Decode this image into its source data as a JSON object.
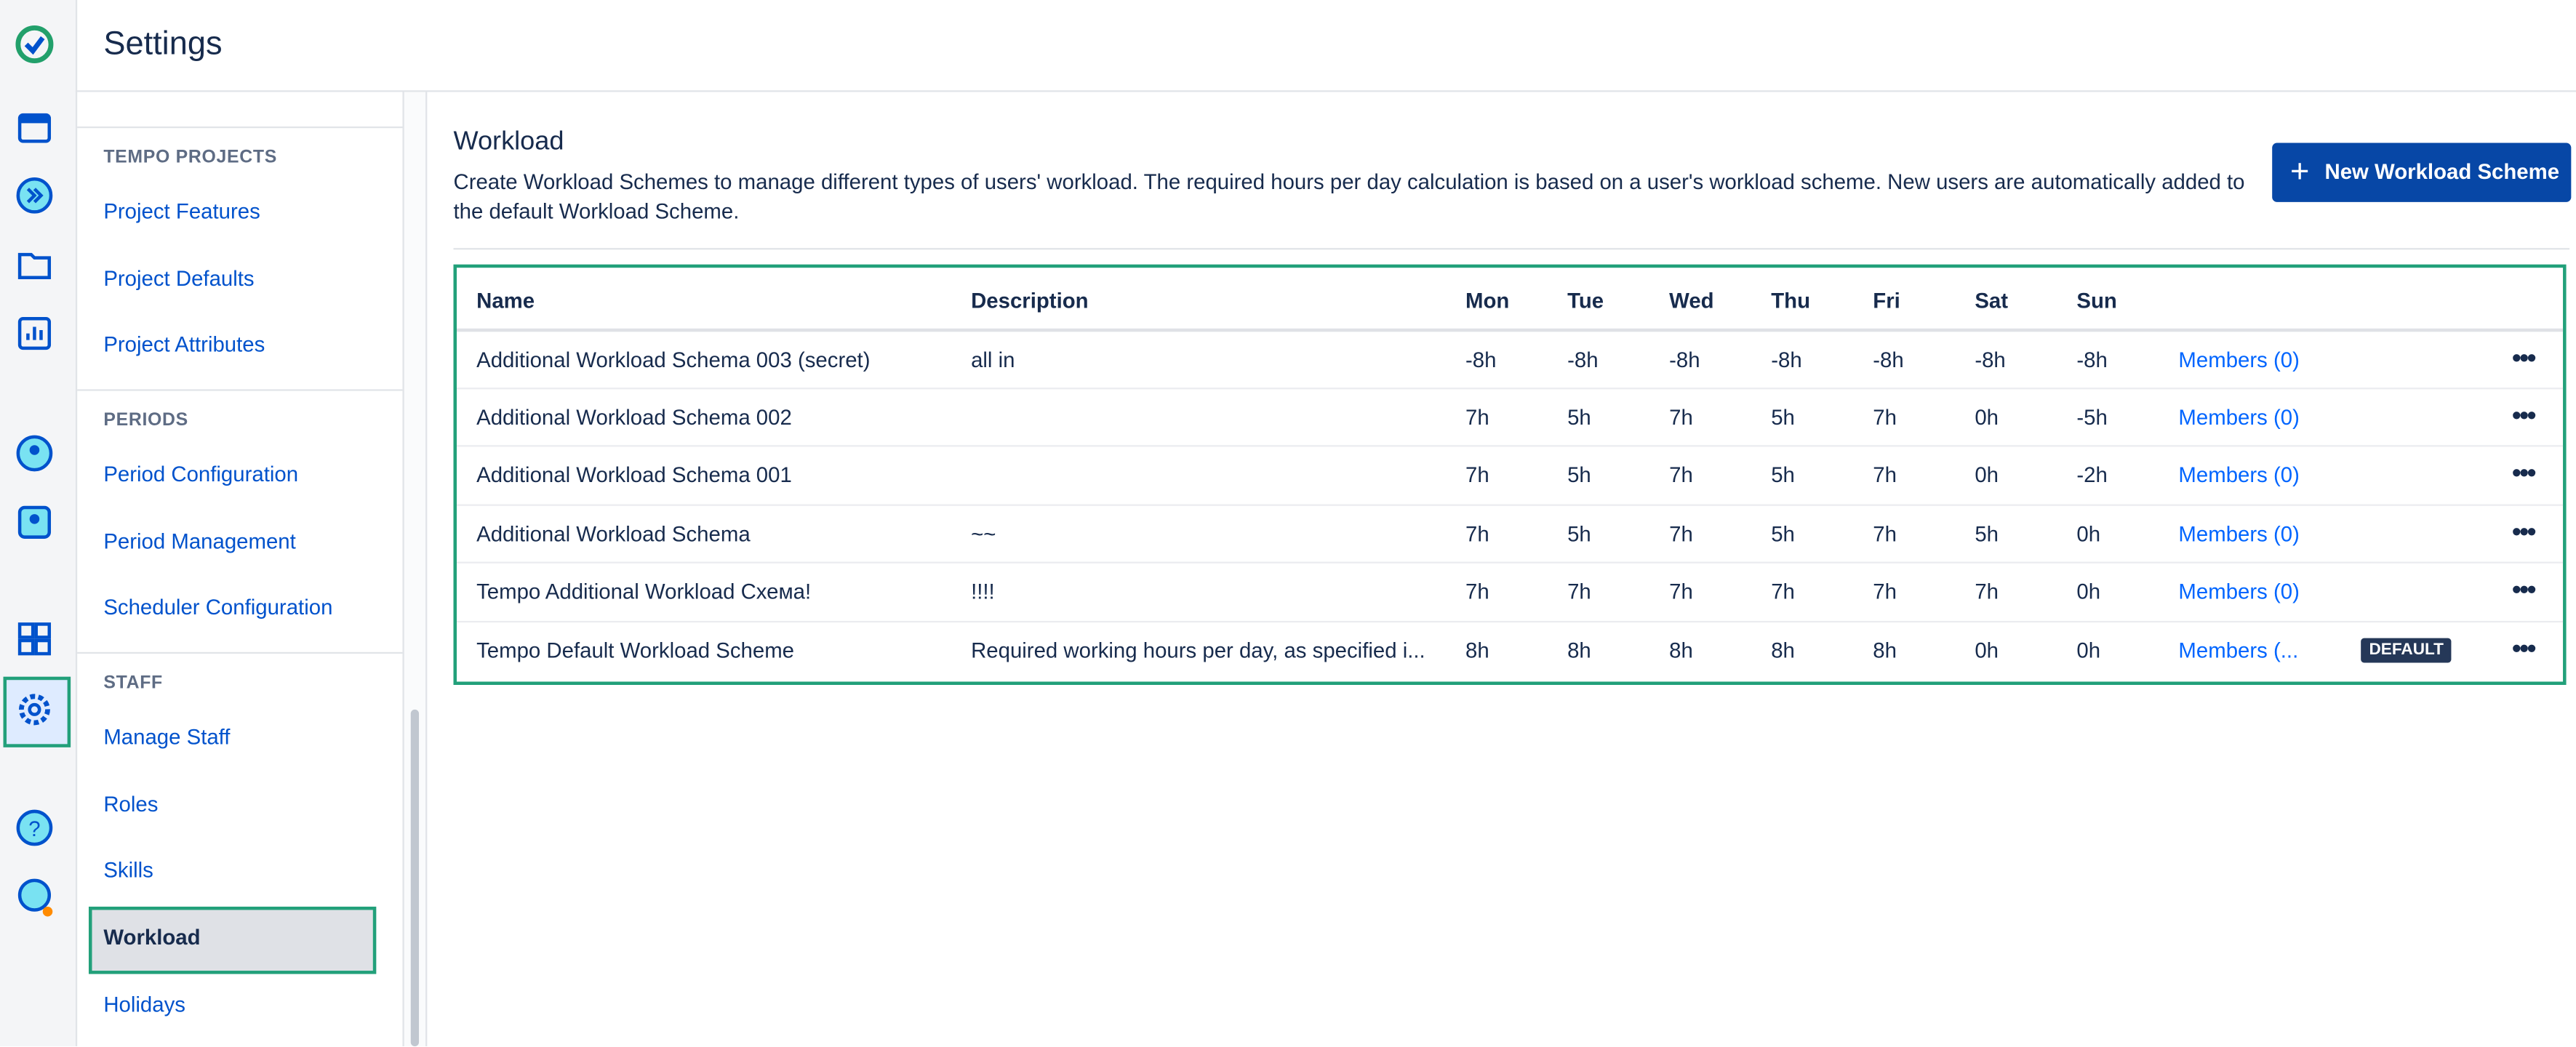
{
  "header": {
    "title": "Settings"
  },
  "sidebar": {
    "sections": [
      {
        "title": "TEMPO PROJECTS",
        "items": [
          "Project Features",
          "Project Defaults",
          "Project Attributes"
        ]
      },
      {
        "title": "PERIODS",
        "items": [
          "Period Configuration",
          "Period Management",
          "Scheduler Configuration"
        ]
      },
      {
        "title": "STAFF",
        "items": [
          "Manage Staff",
          "Roles",
          "Skills",
          "Workload",
          "Holidays"
        ]
      }
    ],
    "selected": "Workload"
  },
  "content": {
    "title": "Workload",
    "description": "Create Workload Schemes to manage different types of users' workload. The required hours per day calculation is based on a user's workload scheme. New users are automatically added to the default Workload Scheme.",
    "button": "New Workload Scheme"
  },
  "table": {
    "columns": [
      "Name",
      "Description",
      "Mon",
      "Tue",
      "Wed",
      "Thu",
      "Fri",
      "Sat",
      "Sun"
    ],
    "rows": [
      {
        "name": "Additional Workload Schema 003 (secret)",
        "description": "all in",
        "hours": [
          "-8h",
          "-8h",
          "-8h",
          "-8h",
          "-8h",
          "-8h",
          "-8h"
        ],
        "members": "Members (0)"
      },
      {
        "name": "Additional Workload Schema 002",
        "description": "",
        "hours": [
          "7h",
          "5h",
          "7h",
          "5h",
          "7h",
          "0h",
          "-5h"
        ],
        "members": "Members (0)"
      },
      {
        "name": "Additional Workload Schema 001",
        "description": "",
        "hours": [
          "7h",
          "5h",
          "7h",
          "5h",
          "7h",
          "0h",
          "-2h"
        ],
        "members": "Members (0)"
      },
      {
        "name": "Additional Workload Schema",
        "description": "~~",
        "hours": [
          "7h",
          "5h",
          "7h",
          "5h",
          "7h",
          "5h",
          "0h"
        ],
        "members": "Members (0)"
      },
      {
        "name": "Tempo Additional Workload Схема!",
        "description": "!!!!",
        "hours": [
          "7h",
          "7h",
          "7h",
          "7h",
          "7h",
          "7h",
          "0h"
        ],
        "members": "Members (0)"
      },
      {
        "name": "Tempo Default Workload Scheme",
        "description": "Required working hours per day, as specified i...",
        "hours": [
          "8h",
          "8h",
          "8h",
          "8h",
          "8h",
          "0h",
          "0h"
        ],
        "members": "Members (...",
        "badge": "DEFAULT"
      }
    ]
  }
}
